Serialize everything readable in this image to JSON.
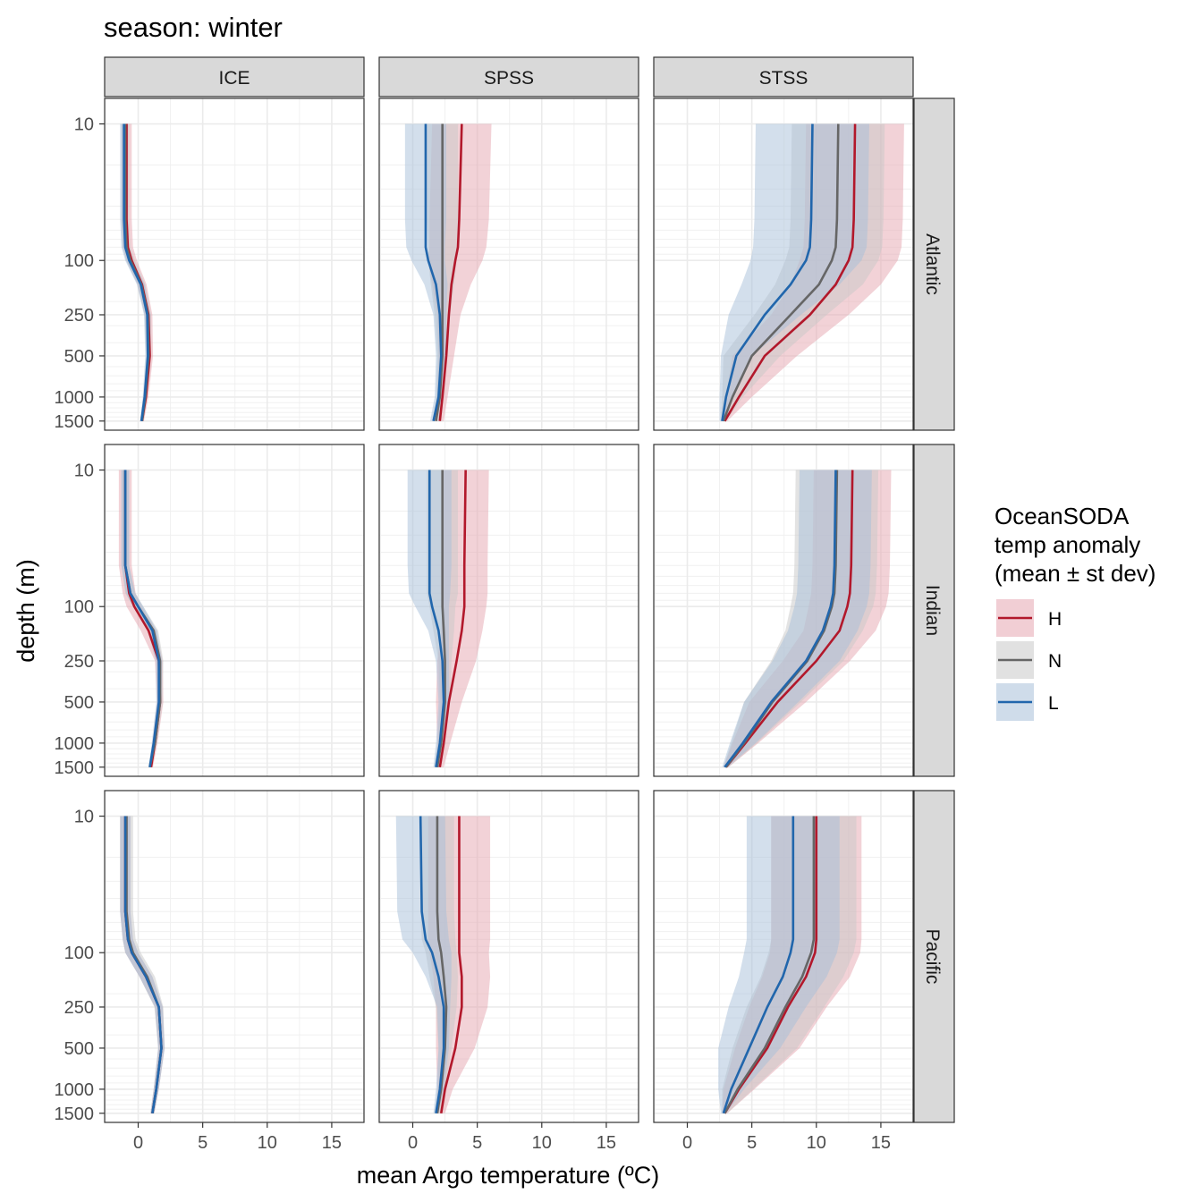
{
  "title": "season: winter",
  "xlabel": "mean Argo temperature (ºC)",
  "ylabel": "depth (m)",
  "columns": [
    "ICE",
    "SPSS",
    "STSS"
  ],
  "rows": [
    "Atlantic",
    "Indian",
    "Pacific"
  ],
  "legend": {
    "title_lines": [
      "OceanSODA",
      "temp anomaly",
      "(mean ± st dev)"
    ],
    "items": [
      {
        "key": "H",
        "label": "H",
        "line": "#b2182b",
        "fill": "#e6a6b0"
      },
      {
        "key": "N",
        "label": "N",
        "line": "#666666",
        "fill": "#c8c8c8"
      },
      {
        "key": "L",
        "label": "L",
        "line": "#2166ac",
        "fill": "#a8bfd9"
      }
    ]
  },
  "chart_data": {
    "type": "line",
    "title": "season: winter",
    "xlabel": "mean Argo temperature (ºC)",
    "ylabel": "depth (m)",
    "x_ticks": [
      0,
      5,
      10,
      15
    ],
    "xlim": [
      -2.6,
      17.5
    ],
    "y_scale": "reversed log10",
    "y_ticks": [
      10,
      100,
      250,
      500,
      1000,
      1500
    ],
    "ylim": [
      6.5,
      1750
    ],
    "depths": [
      10,
      50,
      80,
      100,
      150,
      250,
      500,
      1000,
      1500
    ],
    "panels": [
      {
        "column": "ICE",
        "row": "Atlantic",
        "series": [
          {
            "name": "H",
            "mean": [
              -0.9,
              -0.9,
              -0.8,
              -0.5,
              0.3,
              0.8,
              0.9,
              0.6,
              0.3
            ],
            "sd": [
              0.4,
              0.4,
              0.4,
              0.4,
              0.35,
              0.3,
              0.25,
              0.2,
              0.15
            ]
          },
          {
            "name": "N",
            "mean": [
              -1.0,
              -1.0,
              -0.9,
              -0.6,
              0.25,
              0.75,
              0.8,
              0.55,
              0.3
            ],
            "sd": [
              0.3,
              0.3,
              0.3,
              0.35,
              0.3,
              0.25,
              0.2,
              0.15,
              0.1
            ]
          },
          {
            "name": "L",
            "mean": [
              -1.1,
              -1.1,
              -1.0,
              -0.7,
              0.2,
              0.7,
              0.75,
              0.5,
              0.25
            ],
            "sd": [
              0.3,
              0.3,
              0.3,
              0.3,
              0.3,
              0.25,
              0.2,
              0.15,
              0.1
            ]
          }
        ]
      },
      {
        "column": "SPSS",
        "row": "Atlantic",
        "series": [
          {
            "name": "H",
            "mean": [
              3.8,
              3.6,
              3.5,
              3.3,
              3.0,
              2.8,
              2.6,
              2.3,
              2.1
            ],
            "sd": [
              2.3,
              2.3,
              2.2,
              2.1,
              1.5,
              0.9,
              0.6,
              0.4,
              0.3
            ]
          },
          {
            "name": "N",
            "mean": [
              2.3,
              2.3,
              2.3,
              2.3,
              2.3,
              2.3,
              2.3,
              2.1,
              1.8
            ],
            "sd": [
              1.2,
              1.2,
              1.1,
              1.1,
              0.9,
              0.6,
              0.4,
              0.3,
              0.2
            ]
          },
          {
            "name": "L",
            "mean": [
              1.0,
              1.0,
              1.0,
              1.2,
              1.8,
              2.1,
              2.2,
              2.0,
              1.6
            ],
            "sd": [
              1.6,
              1.6,
              1.5,
              1.3,
              0.9,
              0.5,
              0.4,
              0.3,
              0.25
            ]
          }
        ]
      },
      {
        "column": "STSS",
        "row": "Atlantic",
        "series": [
          {
            "name": "H",
            "mean": [
              13.0,
              12.9,
              12.8,
              12.5,
              11.5,
              9.5,
              6.0,
              4.0,
              2.9
            ],
            "sd": [
              3.8,
              3.8,
              3.8,
              3.8,
              3.5,
              3.0,
              2.5,
              1.0,
              0.2
            ]
          },
          {
            "name": "N",
            "mean": [
              11.7,
              11.6,
              11.5,
              11.2,
              10.2,
              8.0,
              5.0,
              3.5,
              2.8
            ],
            "sd": [
              3.6,
              3.6,
              3.6,
              3.6,
              3.4,
              2.8,
              2.2,
              0.8,
              0.2
            ]
          },
          {
            "name": "L",
            "mean": [
              9.7,
              9.6,
              9.5,
              9.2,
              8.0,
              6.0,
              3.8,
              3.0,
              2.7
            ],
            "sd": [
              4.4,
              4.4,
              4.4,
              4.3,
              3.8,
              2.8,
              1.2,
              0.5,
              0.2
            ]
          }
        ]
      },
      {
        "column": "ICE",
        "row": "Indian",
        "series": [
          {
            "name": "H",
            "mean": [
              -1.0,
              -1.0,
              -0.7,
              -0.3,
              0.8,
              1.6,
              1.7,
              1.3,
              1.0
            ],
            "sd": [
              0.5,
              0.5,
              0.5,
              0.6,
              0.6,
              0.3,
              0.25,
              0.2,
              0.15
            ]
          },
          {
            "name": "N",
            "mean": [
              -1.0,
              -1.0,
              -0.6,
              0.0,
              1.2,
              1.7,
              1.7,
              1.3,
              0.9
            ],
            "sd": [
              0.3,
              0.3,
              0.4,
              0.4,
              0.35,
              0.25,
              0.2,
              0.15,
              0.1
            ]
          },
          {
            "name": "L",
            "mean": [
              -1.0,
              -1.0,
              -0.6,
              0.0,
              1.1,
              1.6,
              1.6,
              1.2,
              0.9
            ],
            "sd": [
              0.3,
              0.3,
              0.35,
              0.4,
              0.35,
              0.25,
              0.2,
              0.15,
              0.1
            ]
          }
        ]
      },
      {
        "column": "SPSS",
        "row": "Indian",
        "series": [
          {
            "name": "H",
            "mean": [
              4.1,
              4.0,
              4.0,
              4.0,
              3.8,
              3.4,
              2.8,
              2.4,
              2.1
            ],
            "sd": [
              1.8,
              1.8,
              1.8,
              1.7,
              1.6,
              1.5,
              1.0,
              0.5,
              0.3
            ]
          },
          {
            "name": "N",
            "mean": [
              2.3,
              2.3,
              2.3,
              2.3,
              2.4,
              2.5,
              2.5,
              2.2,
              1.9
            ],
            "sd": [
              1.2,
              1.2,
              1.2,
              1.0,
              0.8,
              0.5,
              0.4,
              0.3,
              0.2
            ]
          },
          {
            "name": "L",
            "mean": [
              1.3,
              1.3,
              1.3,
              1.5,
              2.0,
              2.3,
              2.4,
              2.1,
              1.8
            ],
            "sd": [
              1.7,
              1.7,
              1.6,
              1.3,
              0.8,
              0.5,
              0.4,
              0.3,
              0.2
            ]
          }
        ]
      },
      {
        "column": "STSS",
        "row": "Indian",
        "series": [
          {
            "name": "H",
            "mean": [
              12.8,
              12.7,
              12.6,
              12.4,
              11.8,
              10.0,
              7.0,
              4.5,
              3.0
            ],
            "sd": [
              3.0,
              3.0,
              3.0,
              3.0,
              2.8,
              2.6,
              2.2,
              1.0,
              0.2
            ]
          },
          {
            "name": "N",
            "mean": [
              11.6,
              11.5,
              11.4,
              11.2,
              10.6,
              9.3,
              6.6,
              4.4,
              3.0
            ],
            "sd": [
              3.2,
              3.2,
              3.2,
              3.2,
              3.0,
              2.8,
              2.2,
              1.0,
              0.2
            ]
          },
          {
            "name": "L",
            "mean": [
              11.5,
              11.4,
              11.3,
              11.1,
              10.5,
              9.2,
              6.5,
              4.3,
              2.9
            ],
            "sd": [
              2.8,
              2.8,
              2.8,
              2.8,
              2.7,
              2.6,
              2.1,
              1.0,
              0.2
            ]
          }
        ]
      },
      {
        "column": "ICE",
        "row": "Pacific",
        "series": [
          {
            "name": "H",
            "mean": [
              -1.0,
              -1.0,
              -0.8,
              -0.5,
              0.6,
              1.6,
              1.8,
              1.4,
              1.1
            ],
            "sd": [
              0.4,
              0.4,
              0.4,
              0.5,
              0.5,
              0.3,
              0.25,
              0.2,
              0.15
            ]
          },
          {
            "name": "N",
            "mean": [
              -0.9,
              -0.9,
              -0.7,
              -0.4,
              0.7,
              1.6,
              1.8,
              1.4,
              1.1
            ],
            "sd": [
              0.5,
              0.5,
              0.5,
              0.6,
              0.6,
              0.35,
              0.25,
              0.2,
              0.15
            ]
          },
          {
            "name": "L",
            "mean": [
              -1.0,
              -1.0,
              -0.8,
              -0.5,
              0.6,
              1.6,
              1.8,
              1.4,
              1.1
            ],
            "sd": [
              0.4,
              0.4,
              0.4,
              0.5,
              0.5,
              0.3,
              0.25,
              0.2,
              0.15
            ]
          }
        ]
      },
      {
        "column": "SPSS",
        "row": "Pacific",
        "series": [
          {
            "name": "H",
            "mean": [
              3.6,
              3.6,
              3.6,
              3.6,
              3.8,
              3.8,
              3.3,
              2.5,
              2.2
            ],
            "sd": [
              2.4,
              2.4,
              2.4,
              2.3,
              2.2,
              2.0,
              1.5,
              0.6,
              0.3
            ]
          },
          {
            "name": "N",
            "mean": [
              1.9,
              1.9,
              2.0,
              2.2,
              2.4,
              2.6,
              2.5,
              2.2,
              1.9
            ],
            "sd": [
              1.3,
              1.3,
              1.3,
              1.2,
              1.1,
              0.8,
              0.5,
              0.3,
              0.2
            ]
          },
          {
            "name": "L",
            "mean": [
              0.6,
              0.7,
              1.0,
              1.5,
              2.0,
              2.4,
              2.4,
              2.1,
              1.8
            ],
            "sd": [
              1.9,
              1.9,
              1.8,
              1.5,
              1.0,
              0.5,
              0.4,
              0.3,
              0.2
            ]
          }
        ]
      },
      {
        "column": "STSS",
        "row": "Pacific",
        "series": [
          {
            "name": "H",
            "mean": [
              10.0,
              10.0,
              10.0,
              9.9,
              9.2,
              7.8,
              6.2,
              4.0,
              2.9
            ],
            "sd": [
              3.5,
              3.5,
              3.5,
              3.5,
              3.4,
              3.0,
              2.5,
              1.2,
              0.2
            ]
          },
          {
            "name": "N",
            "mean": [
              9.8,
              9.8,
              9.8,
              9.6,
              8.9,
              7.6,
              6.0,
              3.9,
              2.9
            ],
            "sd": [
              3.3,
              3.3,
              3.3,
              3.3,
              3.2,
              3.0,
              2.5,
              1.2,
              0.2
            ]
          },
          {
            "name": "L",
            "mean": [
              8.2,
              8.2,
              8.2,
              8.0,
              7.4,
              6.2,
              4.8,
              3.4,
              2.8
            ],
            "sd": [
              3.6,
              3.6,
              3.6,
              3.6,
              3.4,
              3.0,
              2.4,
              1.0,
              0.2
            ]
          }
        ]
      }
    ]
  }
}
